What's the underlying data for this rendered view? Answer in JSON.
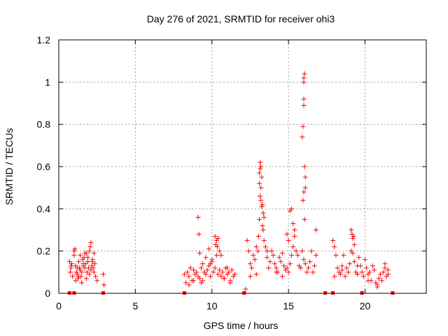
{
  "chart_data": {
    "type": "scatter",
    "title": "Day 276 of 2021, SRMTID for receiver ohi3",
    "xlabel": "GPS time / hours",
    "ylabel": "SRMTID / TECUs",
    "xlim": [
      0,
      24
    ],
    "ylim": [
      0,
      1.2
    ],
    "xticks": [
      0,
      5,
      10,
      15,
      20
    ],
    "yticks": [
      0,
      0.2,
      0.4,
      0.6,
      0.8,
      1,
      1.2
    ],
    "xtick_labels": [
      "0",
      "5",
      "10",
      "15",
      "20"
    ],
    "ytick_labels": [
      "0",
      "0.2",
      "0.4",
      "0.6",
      "0.8",
      "1",
      "1.2"
    ],
    "grid": true,
    "marker": "+",
    "color": "#ff0000",
    "series": [
      {
        "name": "SRMTID",
        "x": [
          0.7,
          0.75,
          0.8,
          0.85,
          0.9,
          1.0,
          1.05,
          1.1,
          1.15,
          1.2,
          1.25,
          1.3,
          1.35,
          1.4,
          1.45,
          1.5,
          1.55,
          1.6,
          1.65,
          1.7,
          1.75,
          1.8,
          1.85,
          1.9,
          1.95,
          2.0,
          2.05,
          2.1,
          2.15,
          2.2,
          2.25,
          2.3,
          2.35,
          2.4,
          2.5,
          2.9,
          2.95,
          0.8,
          1.0,
          1.1,
          1.3,
          1.5,
          1.7,
          1.9,
          2.1,
          2.3,
          1.2,
          1.6,
          2.0,
          1.4,
          1.8,
          2.2,
          8.2,
          8.3,
          8.4,
          8.5,
          8.6,
          8.7,
          8.8,
          8.9,
          9.0,
          9.1,
          9.2,
          9.3,
          9.4,
          9.5,
          9.6,
          9.7,
          9.8,
          9.9,
          10.0,
          10.1,
          10.2,
          10.3,
          10.4,
          10.5,
          10.6,
          10.7,
          10.8,
          10.9,
          11.0,
          11.1,
          11.2,
          11.3,
          11.4,
          11.5,
          9.1,
          9.15,
          9.2,
          9.4,
          9.6,
          9.8,
          10.0,
          10.2,
          10.25,
          10.3,
          10.35,
          10.4,
          10.5,
          10.6,
          8.5,
          8.8,
          9.3,
          9.9,
          10.8,
          11.0,
          11.2,
          12.2,
          12.3,
          12.4,
          12.5,
          12.6,
          12.7,
          12.8,
          12.9,
          13.0,
          13.05,
          13.1,
          13.15,
          13.2,
          13.25,
          13.3,
          13.35,
          13.4,
          13.5,
          13.6,
          13.7,
          13.8,
          13.9,
          14.0,
          14.1,
          14.2,
          14.3,
          14.4,
          14.5,
          14.6,
          14.7,
          14.8,
          14.9,
          15.0,
          15.1,
          15.2,
          15.3,
          15.4,
          15.5,
          15.6,
          15.7,
          15.8,
          15.9,
          16.0,
          16.1,
          16.2,
          16.3,
          16.4,
          16.5,
          16.6,
          16.7,
          16.8,
          13.1,
          13.1,
          13.15,
          13.15,
          13.2,
          13.2,
          13.25,
          13.3,
          13.35,
          13.4,
          15.9,
          15.95,
          16.0,
          16.0,
          16.0,
          16.0,
          16.05,
          16.05,
          16.1,
          16.1,
          15.95,
          16.0,
          16.05,
          15.1,
          15.2,
          15.3,
          15.4,
          14.9,
          15.0,
          16.8,
          12.5,
          12.9,
          13.6,
          14.2,
          14.6,
          17.9,
          18.0,
          18.1,
          18.2,
          18.3,
          18.4,
          18.5,
          18.6,
          18.7,
          18.8,
          18.9,
          19.0,
          19.1,
          19.2,
          19.3,
          19.4,
          19.5,
          19.6,
          19.7,
          19.8,
          19.9,
          20.0,
          20.1,
          20.2,
          20.3,
          20.4,
          20.5,
          20.6,
          20.7,
          20.8,
          20.9,
          21.0,
          21.1,
          21.2,
          21.3,
          21.4,
          21.5,
          19.1,
          19.15,
          19.2,
          19.25,
          19.3,
          18.0,
          18.5,
          19.5,
          20.2,
          20.8,
          21.3,
          21.5
        ],
        "y": [
          0.15,
          0.1,
          0.12,
          0.14,
          0.08,
          0.2,
          0.21,
          0.13,
          0.1,
          0.09,
          0.07,
          0.15,
          0.12,
          0.11,
          0.08,
          0.1,
          0.16,
          0.13,
          0.17,
          0.12,
          0.14,
          0.19,
          0.1,
          0.15,
          0.12,
          0.2,
          0.22,
          0.24,
          0.13,
          0.15,
          0.12,
          0.1,
          0.14,
          0.08,
          0.06,
          0.09,
          0.04,
          0.13,
          0.18,
          0.06,
          0.08,
          0.05,
          0.19,
          0.17,
          0.11,
          0.19,
          0.12,
          0.14,
          0.09,
          0.18,
          0.07,
          0.16,
          0.09,
          0.05,
          0.1,
          0.08,
          0.12,
          0.06,
          0.11,
          0.09,
          0.1,
          0.08,
          0.07,
          0.12,
          0.06,
          0.1,
          0.09,
          0.11,
          0.13,
          0.08,
          0.15,
          0.1,
          0.12,
          0.18,
          0.09,
          0.11,
          0.08,
          0.1,
          0.07,
          0.12,
          0.09,
          0.1,
          0.06,
          0.11,
          0.08,
          0.09,
          0.36,
          0.28,
          0.19,
          0.14,
          0.17,
          0.21,
          0.16,
          0.27,
          0.23,
          0.25,
          0.22,
          0.26,
          0.2,
          0.18,
          0.04,
          0.06,
          0.05,
          0.14,
          0.07,
          0.12,
          0.05,
          0.02,
          0.25,
          0.2,
          0.14,
          0.12,
          0.18,
          0.16,
          0.22,
          0.2,
          0.27,
          0.35,
          0.62,
          0.6,
          0.55,
          0.42,
          0.38,
          0.25,
          0.22,
          0.17,
          0.12,
          0.15,
          0.2,
          0.18,
          0.14,
          0.12,
          0.1,
          0.17,
          0.15,
          0.19,
          0.13,
          0.11,
          0.12,
          0.1,
          0.14,
          0.18,
          0.22,
          0.27,
          0.2,
          0.18,
          0.13,
          0.12,
          0.2,
          0.16,
          0.14,
          0.1,
          0.12,
          0.15,
          0.2,
          0.1,
          0.13,
          0.18,
          0.52,
          0.57,
          0.59,
          0.46,
          0.5,
          0.44,
          0.41,
          0.32,
          0.3,
          0.36,
          0.74,
          0.79,
          0.89,
          0.92,
          1.0,
          1.02,
          1.04,
          0.6,
          0.55,
          0.5,
          0.44,
          0.48,
          0.35,
          0.39,
          0.4,
          0.33,
          0.3,
          0.28,
          0.25,
          0.3,
          0.08,
          0.09,
          0.2,
          0.1,
          0.08,
          0.25,
          0.22,
          0.18,
          0.12,
          0.1,
          0.09,
          0.13,
          0.18,
          0.08,
          0.12,
          0.1,
          0.14,
          0.2,
          0.19,
          0.15,
          0.1,
          0.09,
          0.17,
          0.13,
          0.1,
          0.08,
          0.16,
          0.12,
          0.09,
          0.1,
          0.06,
          0.13,
          0.11,
          0.05,
          0.04,
          0.07,
          0.09,
          0.06,
          0.1,
          0.12,
          0.08,
          0.11,
          0.3,
          0.28,
          0.26,
          0.27,
          0.23,
          0.08,
          0.11,
          0.13,
          0.06,
          0.03,
          0.14,
          0.09
        ]
      }
    ],
    "baseline_marks_x": [
      0.7,
      1.0,
      2.9,
      8.2,
      12.1,
      17.4,
      17.9,
      19.8,
      21.8
    ]
  }
}
